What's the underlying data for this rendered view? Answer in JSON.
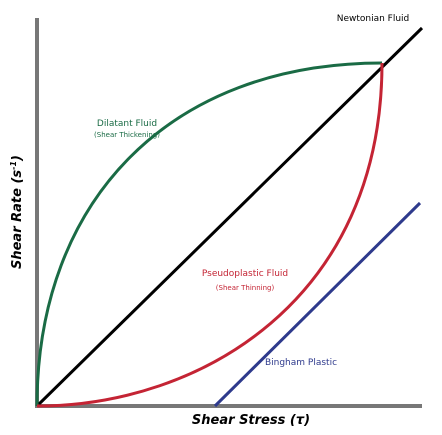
{
  "labels": {
    "newtonian": "Newtonian Fluid",
    "dilatant": "Dilatant Fluid",
    "dilatant_note": "(Shear Thickening)",
    "pseudoplastic": "Pseudoplastic Fluid",
    "pseudoplastic_note": "(Shear Thinning)",
    "bingham": "Bingham Plastic"
  },
  "x_axis_label": "Shear Stress (τ)",
  "y_axis_label": {
    "text": "Shear Rate (s",
    "superscript": "-1",
    "suffix": ")"
  }
}
